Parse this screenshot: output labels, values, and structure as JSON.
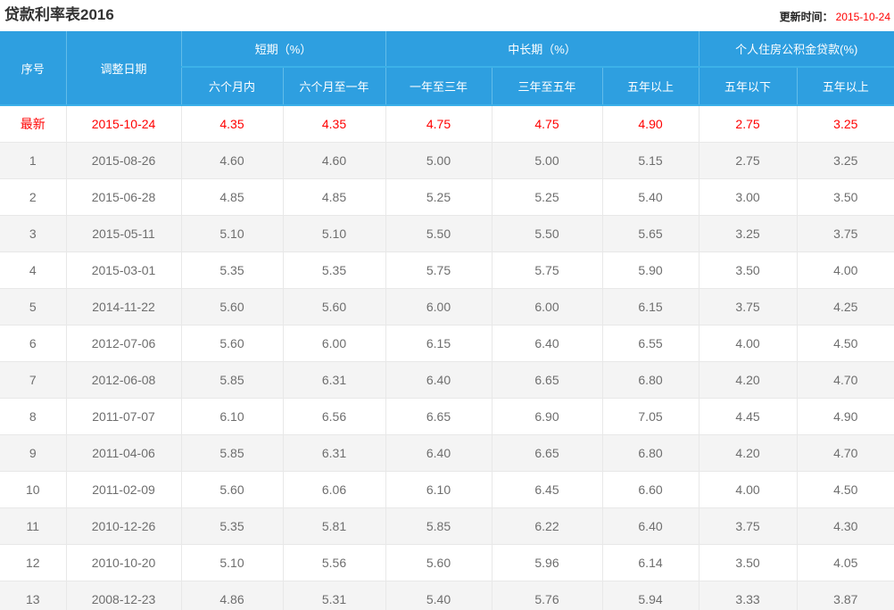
{
  "page": {
    "title": "贷款利率表2016",
    "update_label": "更新时间：",
    "update_date": "2015-10-24"
  },
  "colors": {
    "header_bg": "#2e9fe0",
    "header_separator": "#62bce9",
    "highlight_red": "#ff0000",
    "alt_row_bg": "#f4f4f4",
    "data_text": "#6e6e6e",
    "title_text": "#333333"
  },
  "table": {
    "header": {
      "col_no": "序号",
      "col_date": "调整日期",
      "group_short": "短期（%）",
      "group_mid": "中长期（%）",
      "group_fund": "个人住房公积金贷款(%)",
      "sub": [
        "六个月内",
        "六个月至一年",
        "一年至三年",
        "三年至五年",
        "五年以上",
        "五年以下",
        "五年以上"
      ]
    },
    "rows": [
      {
        "no": "最新",
        "date": "2015-10-24",
        "rates": [
          "4.35",
          "4.35",
          "4.75",
          "4.75",
          "4.90",
          "2.75",
          "3.25"
        ],
        "highlight": true
      },
      {
        "no": "1",
        "date": "2015-08-26",
        "rates": [
          "4.60",
          "4.60",
          "5.00",
          "5.00",
          "5.15",
          "2.75",
          "3.25"
        ]
      },
      {
        "no": "2",
        "date": "2015-06-28",
        "rates": [
          "4.85",
          "4.85",
          "5.25",
          "5.25",
          "5.40",
          "3.00",
          "3.50"
        ]
      },
      {
        "no": "3",
        "date": "2015-05-11",
        "rates": [
          "5.10",
          "5.10",
          "5.50",
          "5.50",
          "5.65",
          "3.25",
          "3.75"
        ]
      },
      {
        "no": "4",
        "date": "2015-03-01",
        "rates": [
          "5.35",
          "5.35",
          "5.75",
          "5.75",
          "5.90",
          "3.50",
          "4.00"
        ]
      },
      {
        "no": "5",
        "date": "2014-11-22",
        "rates": [
          "5.60",
          "5.60",
          "6.00",
          "6.00",
          "6.15",
          "3.75",
          "4.25"
        ]
      },
      {
        "no": "6",
        "date": "2012-07-06",
        "rates": [
          "5.60",
          "6.00",
          "6.15",
          "6.40",
          "6.55",
          "4.00",
          "4.50"
        ]
      },
      {
        "no": "7",
        "date": "2012-06-08",
        "rates": [
          "5.85",
          "6.31",
          "6.40",
          "6.65",
          "6.80",
          "4.20",
          "4.70"
        ]
      },
      {
        "no": "8",
        "date": "2011-07-07",
        "rates": [
          "6.10",
          "6.56",
          "6.65",
          "6.90",
          "7.05",
          "4.45",
          "4.90"
        ]
      },
      {
        "no": "9",
        "date": "2011-04-06",
        "rates": [
          "5.85",
          "6.31",
          "6.40",
          "6.65",
          "6.80",
          "4.20",
          "4.70"
        ]
      },
      {
        "no": "10",
        "date": "2011-02-09",
        "rates": [
          "5.60",
          "6.06",
          "6.10",
          "6.45",
          "6.60",
          "4.00",
          "4.50"
        ]
      },
      {
        "no": "11",
        "date": "2010-12-26",
        "rates": [
          "5.35",
          "5.81",
          "5.85",
          "6.22",
          "6.40",
          "3.75",
          "4.30"
        ]
      },
      {
        "no": "12",
        "date": "2010-10-20",
        "rates": [
          "5.10",
          "5.56",
          "5.60",
          "5.96",
          "6.14",
          "3.50",
          "4.05"
        ]
      },
      {
        "no": "13",
        "date": "2008-12-23",
        "rates": [
          "4.86",
          "5.31",
          "5.40",
          "5.76",
          "5.94",
          "3.33",
          "3.87"
        ]
      }
    ]
  }
}
